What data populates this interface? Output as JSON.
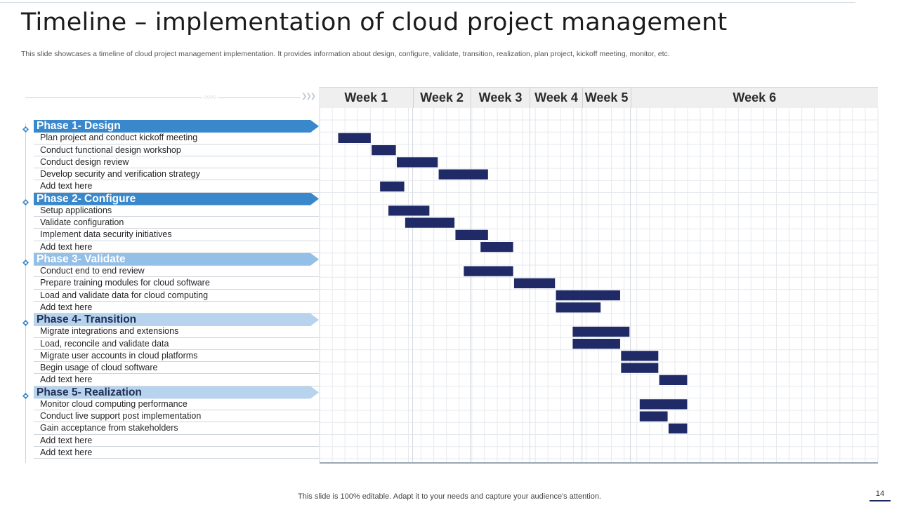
{
  "title": "Timeline – implementation of cloud project management",
  "subtitle": "This slide showcases a timeline of cloud project management implementation. It provides information about design, configure, validate, transition, realization, plan project, kickoff meeting, monitor, etc.",
  "footer": "This slide is 100% editable. Adapt it to your needs and capture your audience's attention.",
  "page_number": "14",
  "colors": {
    "bar": "#1f2a66",
    "phase_dark": "#3a88cc",
    "phase_mid": "#94bfe6",
    "phase_light": "#b7d3ee",
    "grid": "#e6e9ee",
    "week_header_bg": "#efefef"
  },
  "chart_data": {
    "type": "gantt",
    "title": "",
    "xlabel": "",
    "ylabel": "",
    "x_unit": "week",
    "xlim": [
      0,
      6
    ],
    "grid": true,
    "weeks": [
      "Week 1",
      "Week 2",
      "Week 3",
      "Week 4",
      "Week 5",
      "Week 6"
    ],
    "week_boundaries": [
      0,
      1.0,
      1.62,
      2.26,
      2.82,
      3.34
    ],
    "phases": [
      {
        "name": "Phase 1- Design",
        "style": "dark",
        "tasks": [
          {
            "label": "Plan project and conduct kickoff meeting",
            "start": 0.2,
            "end": 0.55
          },
          {
            "label": "Conduct functional design workshop",
            "start": 0.56,
            "end": 0.82
          },
          {
            "label": "Conduct design review",
            "start": 0.83,
            "end": 1.27
          },
          {
            "label": "Develop  security and verification  strategy",
            "start": 1.28,
            "end": 1.81
          },
          {
            "label": "Add text here",
            "start": 0.65,
            "end": 0.91
          }
        ]
      },
      {
        "name": "Phase 2- Configure",
        "style": "dark",
        "tasks": [
          {
            "label": "Setup applications",
            "start": 0.74,
            "end": 1.18
          },
          {
            "label": "Validate configuration",
            "start": 0.92,
            "end": 1.45
          },
          {
            "label": "Implement  data security initiatives",
            "start": 1.46,
            "end": 1.81
          },
          {
            "label": "Add text here",
            "start": 1.73,
            "end": 2.08
          }
        ]
      },
      {
        "name": "Phase 3- Validate",
        "style": "mid",
        "tasks": [
          {
            "label": "Conduct  end to end review",
            "start": 1.55,
            "end": 2.08
          },
          {
            "label": "Prepare training modules for cloud software",
            "start": 2.09,
            "end": 2.53
          },
          {
            "label": "Load and validate data for cloud computing",
            "start": 2.54,
            "end": 3.23
          },
          {
            "label": "Add text here",
            "start": 2.54,
            "end": 3.02
          }
        ]
      },
      {
        "name": "Phase 4- Transition",
        "style": "light",
        "tasks": [
          {
            "label": "Migrate integrations and extensions",
            "start": 2.72,
            "end": 3.33
          },
          {
            "label": "Load,  reconcile and validate  data",
            "start": 2.72,
            "end": 3.23
          },
          {
            "label": "Migrate user accounts in cloud platforms",
            "start": 3.24,
            "end": 3.64
          },
          {
            "label": "Begin usage of cloud software",
            "start": 3.24,
            "end": 3.64
          },
          {
            "label": "Add text here",
            "start": 3.65,
            "end": 3.95
          }
        ]
      },
      {
        "name": "Phase 5- Realization",
        "style": "light",
        "tasks": [
          {
            "label": "Monitor  cloud computing performance",
            "start": 3.44,
            "end": 3.95
          },
          {
            "label": "Conduct  live  support post implementation",
            "start": 3.44,
            "end": 3.74
          },
          {
            "label": "Gain  acceptance from stakeholders",
            "start": 3.75,
            "end": 3.95
          },
          {
            "label": "Add text here",
            "start": null,
            "end": null
          },
          {
            "label": "Add text here",
            "start": null,
            "end": null
          }
        ]
      }
    ]
  }
}
